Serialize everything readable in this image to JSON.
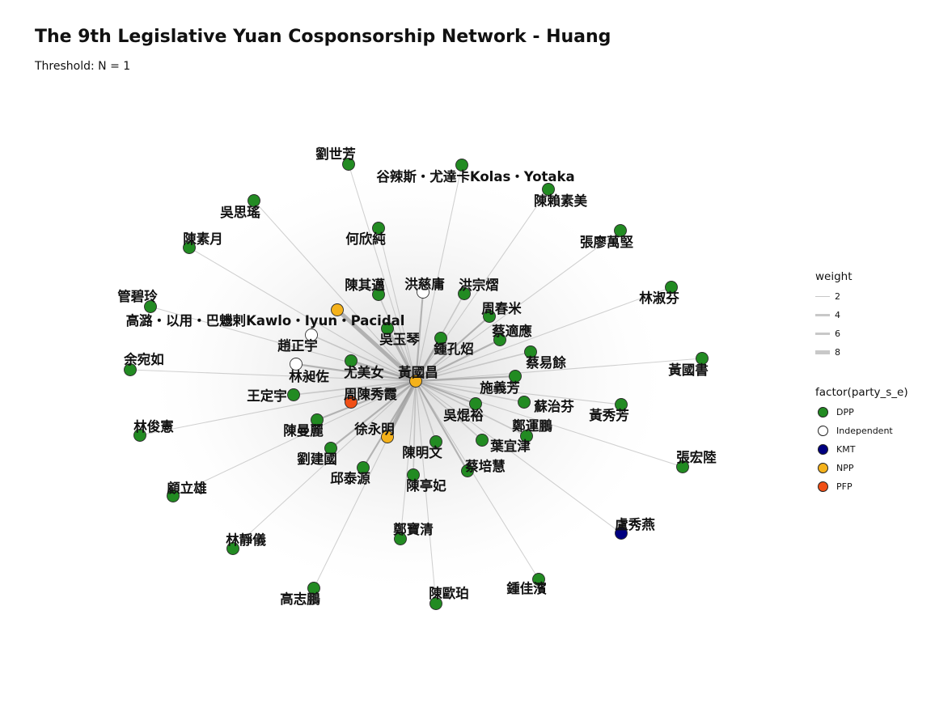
{
  "title": "The 9th Legislative Yuan Cosponsorship Network - Huang",
  "subtitle": "Threshold: N = 1",
  "legend_weight": {
    "title": "weight",
    "items": [
      {
        "label": "2",
        "value": 2
      },
      {
        "label": "4",
        "value": 4
      },
      {
        "label": "6",
        "value": 6
      },
      {
        "label": "8",
        "value": 8
      }
    ]
  },
  "legend_party": {
    "title": "factor(party_s_e)",
    "items": [
      {
        "label": "DPP",
        "color": "#228B22"
      },
      {
        "label": "Independent",
        "color": "#FFFFFF"
      },
      {
        "label": "KMT",
        "color": "#000080"
      },
      {
        "label": "NPP",
        "color": "#F5B21B"
      },
      {
        "label": "PFP",
        "color": "#F04F16"
      }
    ]
  },
  "center": "黃國昌",
  "nodes": [
    {
      "name": "黃國昌",
      "party": "NPP"
    },
    {
      "name": "劉世芳",
      "party": "DPP",
      "weight": 1
    },
    {
      "name": "谷辣斯・尤達卡Kolas・Yotaka",
      "party": "DPP",
      "weight": 1
    },
    {
      "name": "陳賴素美",
      "party": "DPP",
      "weight": 1
    },
    {
      "name": "吳思瑤",
      "party": "DPP",
      "weight": 1
    },
    {
      "name": "何欣純",
      "party": "DPP",
      "weight": 1
    },
    {
      "name": "張廖萬堅",
      "party": "DPP",
      "weight": 1
    },
    {
      "name": "陳素月",
      "party": "DPP",
      "weight": 1
    },
    {
      "name": "陳其邁",
      "party": "DPP",
      "weight": 2
    },
    {
      "name": "洪慈庸",
      "party": "Independent",
      "weight": 3
    },
    {
      "name": "洪宗熠",
      "party": "DPP",
      "weight": 2
    },
    {
      "name": "林淑芬",
      "party": "DPP",
      "weight": 1
    },
    {
      "name": "管碧玲",
      "party": "DPP",
      "weight": 1
    },
    {
      "name": "周春米",
      "party": "DPP",
      "weight": 3
    },
    {
      "name": "高潞・以用・巴魕剌Kawlo・Iyun・Pacidal",
      "party": "NPP",
      "weight": 8
    },
    {
      "name": "趙正宇",
      "party": "Independent",
      "weight": 2
    },
    {
      "name": "吳玉琴",
      "party": "DPP",
      "weight": 5
    },
    {
      "name": "鍾孔炤",
      "party": "DPP",
      "weight": 4
    },
    {
      "name": "蔡適應",
      "party": "DPP",
      "weight": 3
    },
    {
      "name": "余宛如",
      "party": "DPP",
      "weight": 1
    },
    {
      "name": "林昶佐",
      "party": "Independent",
      "weight": 3
    },
    {
      "name": "尤美女",
      "party": "DPP",
      "weight": 4
    },
    {
      "name": "蔡易餘",
      "party": "DPP",
      "weight": 2
    },
    {
      "name": "黃國書",
      "party": "DPP",
      "weight": 1
    },
    {
      "name": "施義芳",
      "party": "DPP",
      "weight": 3
    },
    {
      "name": "王定宇",
      "party": "DPP",
      "weight": 2
    },
    {
      "name": "周陳秀霞",
      "party": "PFP",
      "weight": 3
    },
    {
      "name": "蘇治芬",
      "party": "DPP",
      "weight": 2
    },
    {
      "name": "黃秀芳",
      "party": "DPP",
      "weight": 1
    },
    {
      "name": "吳焜裕",
      "party": "DPP",
      "weight": 3
    },
    {
      "name": "林俊憲",
      "party": "DPP",
      "weight": 1
    },
    {
      "name": "陳曼麗",
      "party": "DPP",
      "weight": 3
    },
    {
      "name": "鄭運鵬",
      "party": "DPP",
      "weight": 2
    },
    {
      "name": "徐永明",
      "party": "NPP",
      "weight": 8
    },
    {
      "name": "葉宜津",
      "party": "DPP",
      "weight": 2
    },
    {
      "name": "陳明文",
      "party": "DPP",
      "weight": 2
    },
    {
      "name": "劉建國",
      "party": "DPP",
      "weight": 3
    },
    {
      "name": "張宏陸",
      "party": "DPP",
      "weight": 1
    },
    {
      "name": "邱泰源",
      "party": "DPP",
      "weight": 3
    },
    {
      "name": "蔡培慧",
      "party": "DPP",
      "weight": 3
    },
    {
      "name": "陳亭妃",
      "party": "DPP",
      "weight": 2
    },
    {
      "name": "顧立雄",
      "party": "DPP",
      "weight": 1
    },
    {
      "name": "盧秀燕",
      "party": "KMT",
      "weight": 1
    },
    {
      "name": "鄭寶清",
      "party": "DPP",
      "weight": 1
    },
    {
      "name": "林靜儀",
      "party": "DPP",
      "weight": 1
    },
    {
      "name": "鍾佳濱",
      "party": "DPP",
      "weight": 1
    },
    {
      "name": "高志鵬",
      "party": "DPP",
      "weight": 1
    },
    {
      "name": "陳歐珀",
      "party": "DPP",
      "weight": 1
    }
  ]
}
